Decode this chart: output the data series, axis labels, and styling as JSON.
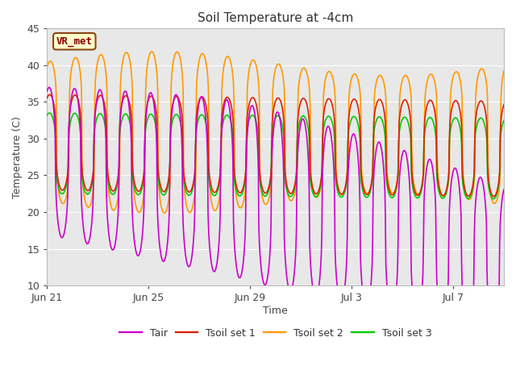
{
  "title": "Soil Temperature at -4cm",
  "xlabel": "Time",
  "ylabel": "Temperature (C)",
  "ylim": [
    10,
    45
  ],
  "colors": {
    "Tair": "#cc00cc",
    "Tsoil1": "#dd2200",
    "Tsoil2": "#ff9900",
    "Tsoil3": "#00cc00"
  },
  "legend_labels": [
    "Tair",
    "Tsoil set 1",
    "Tsoil set 2",
    "Tsoil set 3"
  ],
  "x_tick_labels": [
    "Jun 21",
    "Jun 25",
    "Jun 29",
    "Jul 3",
    "Jul 7"
  ],
  "x_tick_positions": [
    0,
    4,
    8,
    12,
    16
  ],
  "annotation_text": "VR_met",
  "bg_color": "#e8e8e8",
  "linewidth": 1.2
}
